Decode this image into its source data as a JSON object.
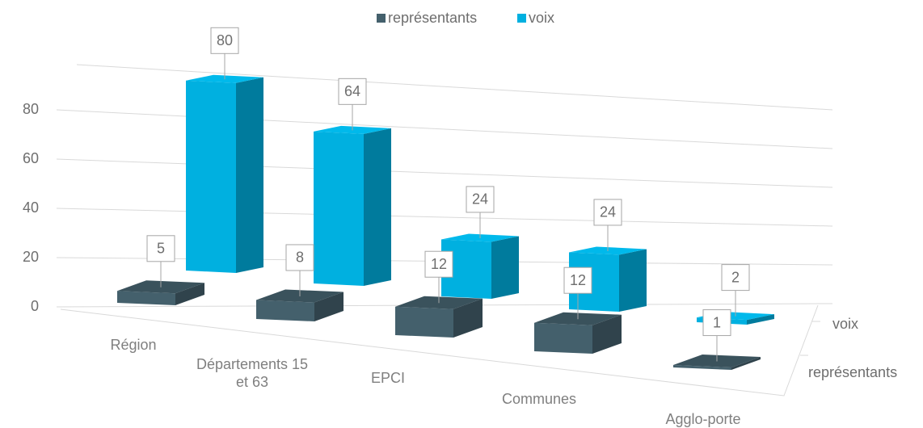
{
  "chart_data": {
    "type": "bar3d",
    "categories": [
      "Région",
      "Départements 15 et 63",
      "EPCI",
      "Communes",
      "Agglo-porte"
    ],
    "series": [
      {
        "name": "représentants",
        "color": "#44606c",
        "values": [
          5,
          8,
          12,
          12,
          1
        ]
      },
      {
        "name": "voix",
        "color": "#00b0e0",
        "values": [
          80,
          64,
          24,
          24,
          2
        ]
      }
    ],
    "ylim": [
      0,
      100
    ],
    "yticks": [
      0,
      20,
      40,
      60,
      80
    ],
    "grid": true,
    "legend": "top"
  }
}
